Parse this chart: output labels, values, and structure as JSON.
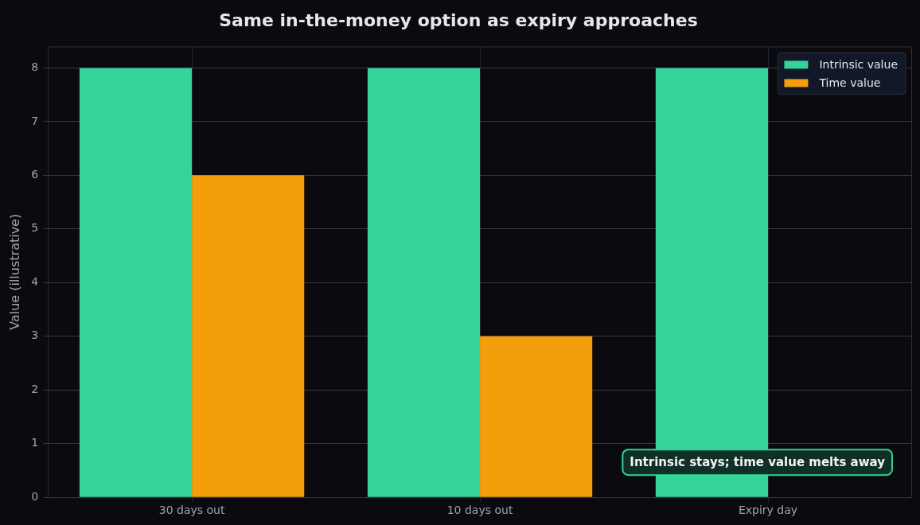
{
  "chart_data": {
    "type": "bar",
    "title": "Same in-the-money option as expiry approaches",
    "ylabel": "Value (illustrative)",
    "categories": [
      "30 days out",
      "10 days out",
      "Expiry day"
    ],
    "series": [
      {
        "name": "Intrinsic value",
        "color": "#34d399",
        "values": [
          8,
          8,
          8
        ]
      },
      {
        "name": "Time value",
        "color": "#f59e0b",
        "values": [
          6,
          3,
          0
        ]
      }
    ],
    "ylim": [
      0,
      8.4
    ],
    "yticks": [
      0,
      1,
      2,
      3,
      4,
      5,
      6,
      7,
      8
    ],
    "grid": true,
    "legend": "top right",
    "annotations": [
      "Intrinsic stays; time value melts away"
    ]
  }
}
